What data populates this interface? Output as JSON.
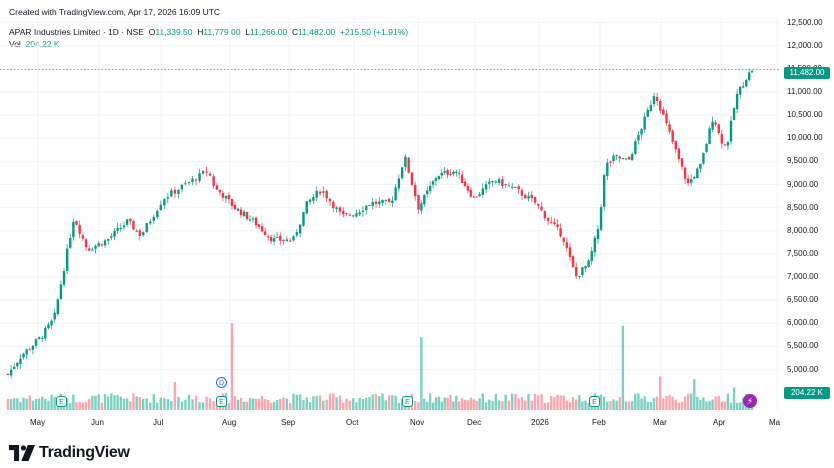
{
  "watermark": "Created with TradingView.com, Apr 17, 2026 16:09 UTC",
  "legend": {
    "name": "APAR Industries Limited · 1D · NSE",
    "o_label": "O",
    "o": "11,339.50",
    "h_label": "H",
    "h": "11,779.00",
    "l_label": "L",
    "l": "11,266.00",
    "c_label": "C",
    "c": "11,482.00",
    "change": "+215.50 (+1.91%)"
  },
  "volume": {
    "label": "Vol",
    "value": "204.22 K"
  },
  "price_badge": "11,482.00",
  "volume_badge": "204.22 K",
  "brand": "TradingView",
  "colors": {
    "up": "#089981",
    "down": "#f23645",
    "vol_up": "#7dcfc2",
    "vol_down": "#f7a7ad",
    "accent": "#2962ff"
  },
  "markers": {
    "earnings": "E",
    "dividend": "D",
    "event_icon": "lightning-icon"
  },
  "chart_data": {
    "type": "candlestick",
    "ylim": [
      4600,
      12600
    ],
    "y_ticks": [
      "12,500.00",
      "12,000.00",
      "11,500.00",
      "11,000.00",
      "10,500.00",
      "10,000.00",
      "9,500.00",
      "9,000.00",
      "8,500.00",
      "8,000.00",
      "7,500.00",
      "7,000.00",
      "6,500.00",
      "6,000.00",
      "5,500.00",
      "5,000.00"
    ],
    "y_tick_values": [
      12500,
      12000,
      11500,
      11000,
      10500,
      10000,
      9500,
      9000,
      8500,
      8000,
      7500,
      7000,
      6500,
      6000,
      5500,
      5000
    ],
    "x_ticks": [
      "May",
      "Jun",
      "Jul",
      "Aug",
      "Sep",
      "Oct",
      "Nov",
      "Dec",
      "2026",
      "Feb",
      "Mar",
      "Apr",
      "Ma"
    ],
    "x_tick_months": [
      0,
      1,
      2,
      3,
      4,
      5,
      6,
      7,
      8,
      9,
      10,
      11,
      12
    ],
    "month_starts": [
      "2025-05",
      "2025-06",
      "2025-07",
      "2025-08",
      "2025-09",
      "2025-10",
      "2025-11",
      "2025-12",
      "2026-01",
      "2026-02",
      "2026-03",
      "2026-04",
      "2026-05"
    ],
    "close_waypoints": [
      [
        0.0,
        4900
      ],
      [
        0.2,
        5300
      ],
      [
        0.5,
        5700
      ],
      [
        0.7,
        6100
      ],
      [
        0.85,
        7200
      ],
      [
        1.0,
        8300
      ],
      [
        1.2,
        7600
      ],
      [
        1.5,
        7800
      ],
      [
        1.8,
        8200
      ],
      [
        2.0,
        7900
      ],
      [
        2.3,
        8700
      ],
      [
        2.6,
        9000
      ],
      [
        2.9,
        9300
      ],
      [
        3.0,
        8900
      ],
      [
        3.1,
        8800
      ],
      [
        3.3,
        8500
      ],
      [
        3.6,
        8200
      ],
      [
        3.9,
        7800
      ],
      [
        4.2,
        7800
      ],
      [
        4.4,
        8600
      ],
      [
        4.6,
        8900
      ],
      [
        4.9,
        8300
      ],
      [
        5.1,
        8400
      ],
      [
        5.3,
        8600
      ],
      [
        5.6,
        8600
      ],
      [
        5.8,
        9600
      ],
      [
        6.0,
        8500
      ],
      [
        6.3,
        9200
      ],
      [
        6.6,
        9300
      ],
      [
        6.9,
        8700
      ],
      [
        7.2,
        9100
      ],
      [
        7.5,
        8900
      ],
      [
        7.8,
        8600
      ],
      [
        8.0,
        8200
      ],
      [
        8.2,
        7900
      ],
      [
        8.4,
        7000
      ],
      [
        8.6,
        7300
      ],
      [
        8.75,
        8100
      ],
      [
        8.85,
        9400
      ],
      [
        9.0,
        9600
      ],
      [
        9.2,
        9500
      ],
      [
        9.5,
        10600
      ],
      [
        9.6,
        11000
      ],
      [
        9.7,
        10600
      ],
      [
        9.9,
        9800
      ],
      [
        10.1,
        9000
      ],
      [
        10.3,
        9400
      ],
      [
        10.5,
        10500
      ],
      [
        10.6,
        10000
      ],
      [
        10.7,
        9800
      ],
      [
        10.85,
        10900
      ],
      [
        11.0,
        11300
      ],
      [
        11.1,
        11482
      ]
    ],
    "volume_spikes": [
      {
        "month": 0.45,
        "value": 1300
      },
      {
        "month": 2.45,
        "value": 1000
      },
      {
        "month": 3.25,
        "value": 3100
      },
      {
        "month": 6.05,
        "value": 2600
      },
      {
        "month": 9.1,
        "value": 3000
      },
      {
        "month": 9.7,
        "value": 1200
      },
      {
        "month": 10.2,
        "value": 1100
      },
      {
        "month": 10.8,
        "value": 800
      }
    ]
  }
}
